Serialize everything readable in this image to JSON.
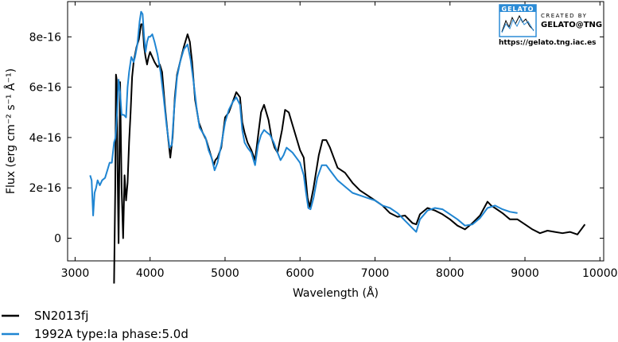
{
  "chart_data": {
    "type": "line",
    "title": "",
    "xlabel": "Wavelength (Å)",
    "ylabel": "Flux (erg cm⁻² s⁻¹ Å⁻¹)",
    "xlim": [
      2900,
      10050
    ],
    "ylim": [
      -9e-17,
      9.4e-16
    ],
    "xticks": [
      3000,
      4000,
      5000,
      6000,
      7000,
      8000,
      9000,
      10000
    ],
    "xtick_labels": [
      "3000",
      "4000",
      "5000",
      "6000",
      "7000",
      "8000",
      "9000",
      "10000"
    ],
    "yticks": [
      0,
      2e-16,
      4e-16,
      6e-16,
      8e-16
    ],
    "ytick_labels": [
      "0",
      "2e-16",
      "4e-16",
      "6e-16",
      "8e-16"
    ],
    "grid": false,
    "legend_position": "below-left",
    "series": [
      {
        "name": "SN2013fj",
        "color": "#000000",
        "x": [
          3520,
          3535,
          3545,
          3555,
          3565,
          3580,
          3600,
          3620,
          3640,
          3660,
          3680,
          3700,
          3720,
          3740,
          3760,
          3780,
          3800,
          3820,
          3850,
          3880,
          3900,
          3920,
          3940,
          3960,
          3980,
          4000,
          4030,
          4060,
          4100,
          4130,
          4160,
          4200,
          4240,
          4270,
          4300,
          4330,
          4360,
          4400,
          4450,
          4500,
          4530,
          4560,
          4600,
          4650,
          4700,
          4750,
          4800,
          4850,
          4870,
          4900,
          4950,
          5000,
          5050,
          5100,
          5150,
          5200,
          5230,
          5260,
          5300,
          5350,
          5400,
          5450,
          5480,
          5520,
          5580,
          5620,
          5660,
          5700,
          5760,
          5800,
          5850,
          5900,
          5950,
          6000,
          6050,
          6100,
          6130,
          6180,
          6250,
          6300,
          6350,
          6400,
          6450,
          6500,
          6600,
          6700,
          6800,
          6900,
          7000,
          7100,
          7200,
          7300,
          7400,
          7500,
          7550,
          7600,
          7700,
          7800,
          7900,
          8000,
          8100,
          8200,
          8300,
          8400,
          8500,
          8550,
          8600,
          8700,
          8800,
          8900,
          9000,
          9100,
          9200,
          9300,
          9400,
          9500,
          9600,
          9700,
          9800
        ],
        "y": [
          -1.8e-16,
          2e-16,
          6.5e-16,
          6.3e-16,
          3e-16,
          -2e-17,
          6.2e-16,
          2e-16,
          0.0,
          2.5e-16,
          1.5e-16,
          2.2e-16,
          3.8e-16,
          5e-16,
          6.4e-16,
          7e-16,
          7.3e-16,
          7.6e-16,
          7.9e-16,
          8.5e-16,
          8.5e-16,
          7.6e-16,
          7.2e-16,
          6.9e-16,
          7.2e-16,
          7.4e-16,
          7.2e-16,
          7e-16,
          6.8e-16,
          6.9e-16,
          6.6e-16,
          5.2e-16,
          4e-16,
          3.2e-16,
          4e-16,
          5.6e-16,
          6.5e-16,
          7e-16,
          7.6e-16,
          8.1e-16,
          7.8e-16,
          7e-16,
          5.5e-16,
          4.6e-16,
          4.2e-16,
          3.9e-16,
          3.4e-16,
          2.9e-16,
          3.1e-16,
          3.2e-16,
          3.6e-16,
          4.8e-16,
          5e-16,
          5.4e-16,
          5.8e-16,
          5.6e-16,
          4.6e-16,
          4.2e-16,
          3.8e-16,
          3.5e-16,
          3.1e-16,
          4.3e-16,
          5e-16,
          5.3e-16,
          4.7e-16,
          4e-16,
          3.6e-16,
          3.4e-16,
          4.3e-16,
          5.1e-16,
          5e-16,
          4.5e-16,
          4e-16,
          3.5e-16,
          3.2e-16,
          1.6e-16,
          1.25e-16,
          2e-16,
          3.3e-16,
          3.9e-16,
          3.9e-16,
          3.6e-16,
          3.2e-16,
          2.8e-16,
          2.6e-16,
          2.2e-16,
          1.9e-16,
          1.7e-16,
          1.5e-16,
          1.3e-16,
          1e-16,
          8.5e-17,
          9e-17,
          6e-17,
          5.5e-17,
          9.5e-17,
          1.2e-16,
          1.1e-16,
          9.5e-17,
          7.5e-17,
          5e-17,
          3.5e-17,
          6e-17,
          9e-17,
          1.45e-16,
          1.3e-16,
          1.2e-16,
          1e-16,
          7.5e-17,
          7.5e-17,
          5.5e-17,
          3.5e-17,
          2e-17,
          3e-17,
          2.5e-17,
          2e-17,
          2.5e-17,
          1.5e-17,
          5.5e-17
        ]
      },
      {
        "name": "1992A  type:Ia  phase:5.0d",
        "color": "#1f85d2",
        "x": [
          3200,
          3220,
          3240,
          3260,
          3280,
          3300,
          3330,
          3360,
          3400,
          3430,
          3460,
          3490,
          3520,
          3540,
          3560,
          3580,
          3600,
          3620,
          3650,
          3680,
          3700,
          3720,
          3750,
          3780,
          3800,
          3830,
          3860,
          3880,
          3900,
          3920,
          3940,
          3960,
          3980,
          4000,
          4030,
          4060,
          4100,
          4140,
          4180,
          4220,
          4260,
          4290,
          4320,
          4360,
          4400,
          4450,
          4500,
          4540,
          4580,
          4620,
          4660,
          4700,
          4740,
          4780,
          4820,
          4860,
          4900,
          4950,
          5000,
          5050,
          5100,
          5150,
          5200,
          5230,
          5260,
          5300,
          5350,
          5400,
          5440,
          5480,
          5520,
          5560,
          5600,
          5650,
          5700,
          5740,
          5780,
          5820,
          5860,
          5900,
          5950,
          6000,
          6050,
          6080,
          6110,
          6140,
          6180,
          6230,
          6290,
          6350,
          6400,
          6450,
          6500,
          6600,
          6700,
          6800,
          6900,
          7000,
          7100,
          7200,
          7300,
          7400,
          7500,
          7550,
          7600,
          7700,
          7800,
          7900,
          8000,
          8100,
          8200,
          8300,
          8400,
          8500,
          8600,
          8700,
          8800,
          8900
        ],
        "y": [
          2.5e-16,
          2.3e-16,
          9e-17,
          1.8e-16,
          2e-16,
          2.3e-16,
          2.1e-16,
          2.3e-16,
          2.4e-16,
          2.7e-16,
          3e-16,
          3e-16,
          3.8e-16,
          4e-16,
          5e-16,
          6.3e-16,
          5.8e-16,
          4.9e-16,
          4.9e-16,
          4.8e-16,
          6e-16,
          6.6e-16,
          7.2e-16,
          7e-16,
          7.2e-16,
          7.7e-16,
          8.6e-16,
          9e-16,
          8.9e-16,
          8e-16,
          7.4e-16,
          7.8e-16,
          8e-16,
          8e-16,
          8.1e-16,
          7.8e-16,
          7.3e-16,
          6.6e-16,
          5.6e-16,
          4.5e-16,
          3.6e-16,
          3.7e-16,
          5.1e-16,
          6.4e-16,
          7e-16,
          7.5e-16,
          7.7e-16,
          7.1e-16,
          6.2e-16,
          5.2e-16,
          4.4e-16,
          4.2e-16,
          4e-16,
          3.5e-16,
          3.2e-16,
          2.7e-16,
          3e-16,
          3.7e-16,
          4.6e-16,
          5.1e-16,
          5.4e-16,
          5.6e-16,
          5.3e-16,
          4.3e-16,
          3.8e-16,
          3.6e-16,
          3.4e-16,
          2.9e-16,
          3.7e-16,
          4.1e-16,
          4.3e-16,
          4.2e-16,
          4.1e-16,
          3.8e-16,
          3.4e-16,
          3.1e-16,
          3.3e-16,
          3.6e-16,
          3.5e-16,
          3.4e-16,
          3.2e-16,
          3e-16,
          2.5e-16,
          1.8e-16,
          1.2e-16,
          1.15e-16,
          1.6e-16,
          2.4e-16,
          2.9e-16,
          2.9e-16,
          2.7e-16,
          2.5e-16,
          2.3e-16,
          2.05e-16,
          1.8e-16,
          1.7e-16,
          1.6e-16,
          1.5e-16,
          1.3e-16,
          1.2e-16,
          1e-16,
          7e-17,
          4e-17,
          2.5e-17,
          7.5e-17,
          1.1e-16,
          1.2e-16,
          1.15e-16,
          9.5e-17,
          7.5e-17,
          5e-17,
          5.5e-17,
          8e-17,
          1.2e-16,
          1.3e-16,
          1.15e-16,
          1.05e-16,
          1e-16
        ]
      }
    ]
  },
  "logo": {
    "badge_text": "GELATO",
    "created_by": "CREATED BY",
    "name": "GELATO@TNG",
    "url": "https://gelato.tng.iac.es"
  },
  "legend": {
    "items": [
      {
        "label": "SN2013fj",
        "color": "#000000"
      },
      {
        "label": "1992A  type:Ia  phase:5.0d",
        "color": "#1f85d2"
      }
    ]
  }
}
